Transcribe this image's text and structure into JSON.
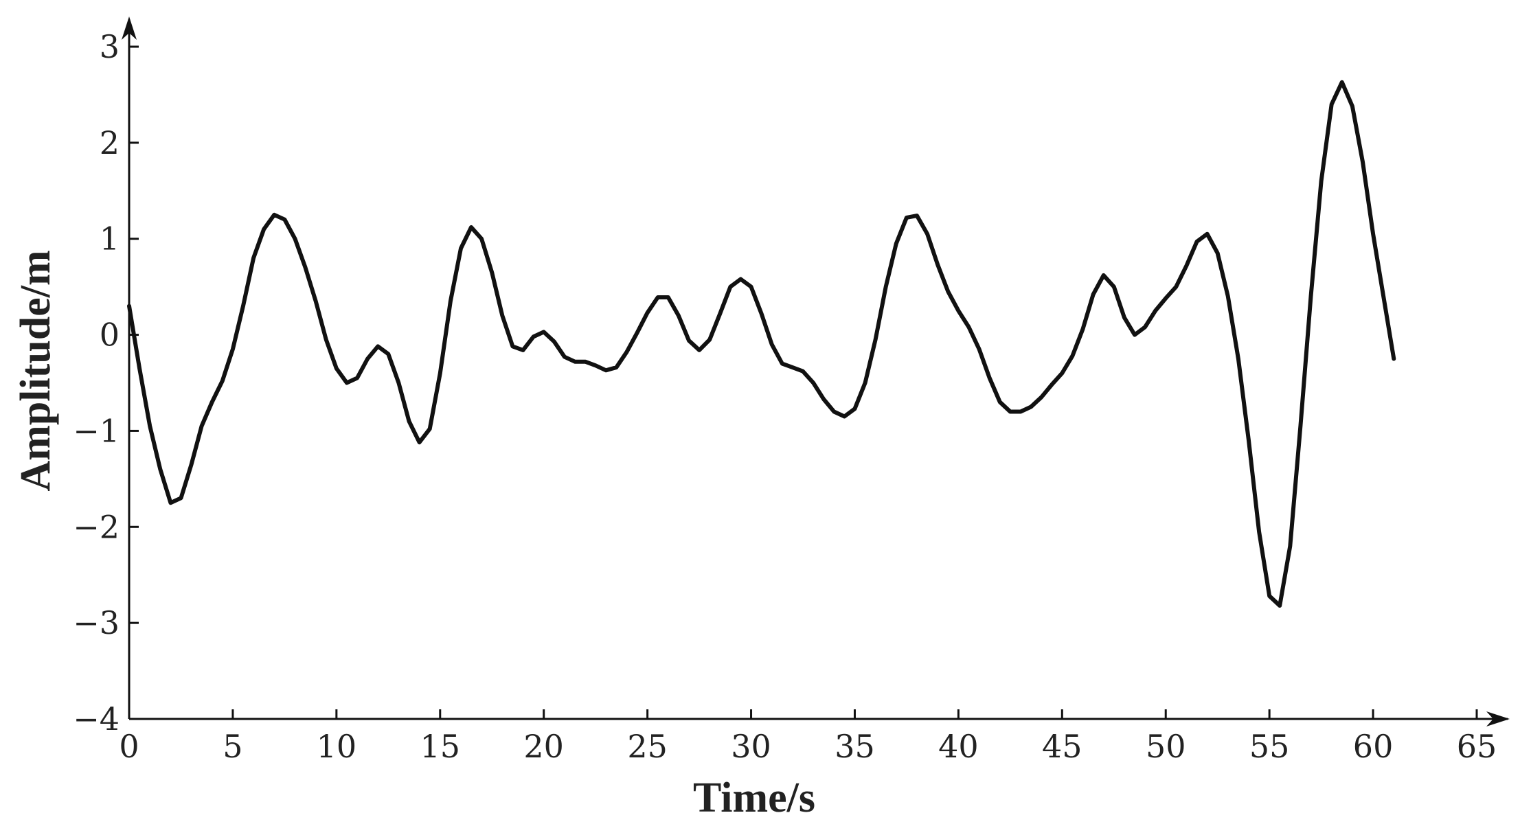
{
  "chart_data": {
    "type": "line",
    "title": "",
    "xlabel": "Time/s",
    "ylabel": "Amplitude/m",
    "xlim": [
      0,
      65
    ],
    "ylim": [
      -4,
      3
    ],
    "xticks": [
      0,
      5,
      10,
      15,
      20,
      25,
      30,
      35,
      40,
      45,
      50,
      55,
      60,
      65
    ],
    "yticks": [
      -4,
      -3,
      -2,
      -1,
      0,
      1,
      2,
      3
    ],
    "xtick_labels": [
      "0",
      "5",
      "10",
      "15",
      "20",
      "25",
      "30",
      "35",
      "40",
      "45",
      "50",
      "55",
      "60",
      "65"
    ],
    "ytick_labels": [
      "−4",
      "−3",
      "−2",
      "−1",
      "0",
      "1",
      "2",
      "3"
    ],
    "grid": false,
    "line_color": "#111111",
    "series": [
      {
        "x": [
          0,
          0.5,
          1,
          1.5,
          2,
          2.5,
          3,
          3.5,
          4,
          4.5,
          5,
          5.5,
          6,
          6.5,
          7,
          7.5,
          8,
          8.5,
          9,
          9.5,
          10,
          10.5,
          11,
          11.5,
          12,
          12.5,
          13,
          13.5,
          14,
          14.5,
          15,
          15.5,
          16,
          16.5,
          17,
          17.5,
          18,
          18.5,
          19,
          19.5,
          20,
          20.5,
          21,
          21.5,
          22,
          22.5,
          23,
          23.5,
          24,
          24.5,
          25,
          25.5,
          26,
          26.5,
          27,
          27.5,
          28,
          28.5,
          29,
          29.5,
          30,
          30.5,
          31,
          31.5,
          32,
          32.5,
          33,
          33.5,
          34,
          34.5,
          35,
          35.5,
          36,
          36.5,
          37,
          37.5,
          38,
          38.5,
          39,
          39.5,
          40,
          40.5,
          41,
          41.5,
          42,
          42.5,
          43,
          43.5,
          44,
          44.5,
          45,
          45.5,
          46,
          46.5,
          47,
          47.5,
          48,
          48.5,
          49,
          49.5,
          50,
          50.5,
          51,
          51.5,
          52,
          52.5,
          53,
          53.5,
          54,
          54.5,
          55,
          55.5,
          56,
          56.5,
          57,
          57.5,
          58,
          58.5,
          59,
          59.5,
          60,
          60.5,
          61
        ],
        "y": [
          0.3,
          -0.35,
          -0.95,
          -1.4,
          -1.75,
          -1.7,
          -1.35,
          -0.95,
          -0.7,
          -0.48,
          -0.15,
          0.3,
          0.8,
          1.1,
          1.25,
          1.2,
          1.0,
          0.7,
          0.35,
          -0.05,
          -0.35,
          -0.5,
          -0.45,
          -0.25,
          -0.12,
          -0.2,
          -0.5,
          -0.9,
          -1.12,
          -0.98,
          -0.4,
          0.35,
          0.9,
          1.12,
          1.0,
          0.65,
          0.2,
          -0.12,
          -0.16,
          -0.02,
          0.03,
          -0.07,
          -0.23,
          -0.28,
          -0.28,
          -0.32,
          -0.37,
          -0.34,
          -0.18,
          0.02,
          0.23,
          0.39,
          0.39,
          0.2,
          -0.06,
          -0.16,
          -0.05,
          0.22,
          0.5,
          0.58,
          0.5,
          0.22,
          -0.1,
          -0.3,
          -0.34,
          -0.38,
          -0.5,
          -0.67,
          -0.8,
          -0.85,
          -0.77,
          -0.5,
          -0.05,
          0.5,
          0.95,
          1.22,
          1.24,
          1.05,
          0.73,
          0.45,
          0.25,
          0.08,
          -0.15,
          -0.45,
          -0.7,
          -0.8,
          -0.8,
          -0.75,
          -0.65,
          -0.52,
          -0.4,
          -0.22,
          0.06,
          0.42,
          0.62,
          0.5,
          0.18,
          0.0,
          0.08,
          0.25,
          0.38,
          0.5,
          0.72,
          0.97,
          1.05,
          0.85,
          0.4,
          -0.25,
          -1.1,
          -2.05,
          -2.72,
          -2.82,
          -2.2,
          -0.95,
          0.4,
          1.6,
          2.4,
          2.63,
          2.38,
          1.8,
          1.05,
          0.4,
          -0.25
        ]
      }
    ]
  }
}
